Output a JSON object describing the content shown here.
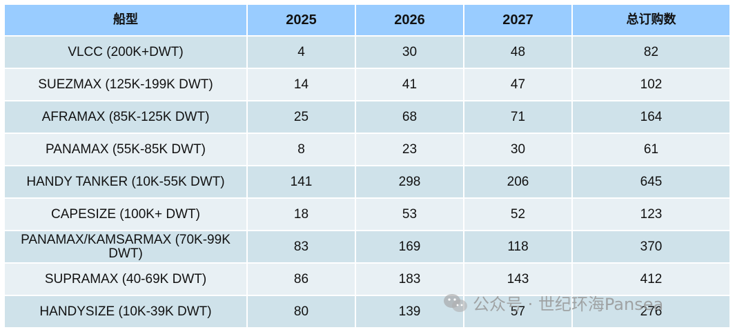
{
  "table": {
    "headers": [
      "船型",
      "2025",
      "2026",
      "2027",
      "总订购数"
    ],
    "rows": [
      [
        "VLCC (200K+DWT)",
        "4",
        "30",
        "48",
        "82"
      ],
      [
        "SUEZMAX (125K-199K DWT)",
        "14",
        "41",
        "47",
        "102"
      ],
      [
        "AFRAMAX (85K-125K DWT)",
        "25",
        "68",
        "71",
        "164"
      ],
      [
        "PANAMAX (55K-85K DWT)",
        "8",
        "23",
        "30",
        "61"
      ],
      [
        "HANDY TANKER (10K-55K DWT)",
        "141",
        "298",
        "206",
        "645"
      ],
      [
        "CAPESIZE (100K+ DWT)",
        "18",
        "53",
        "52",
        "123"
      ],
      [
        "PANAMAX/KAMSARMAX (70K-99K DWT)",
        "83",
        "169",
        "118",
        "370"
      ],
      [
        "SUPRAMAX (40-69K DWT)",
        "86",
        "183",
        "143",
        "412"
      ],
      [
        "HANDYSIZE (10K-39K DWT)",
        "80",
        "139",
        "57",
        "276"
      ]
    ]
  },
  "watermark": {
    "text": "公众号 · 世纪环海Pansea",
    "icon": "wechat-icon"
  },
  "colors": {
    "header_bg": "#99ccff",
    "row_dark": "#cfe2ea",
    "row_light": "#e8f0f4"
  }
}
